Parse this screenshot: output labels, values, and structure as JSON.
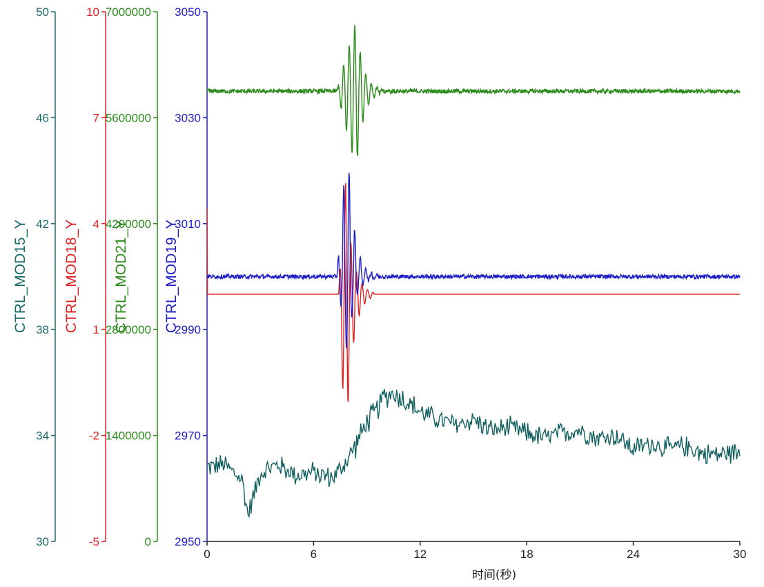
{
  "chart_data": {
    "type": "line",
    "xlabel": "时间(秒)",
    "xlim": [
      0,
      30
    ],
    "x_ticks": [
      "0",
      "6",
      "12",
      "18",
      "24",
      "30"
    ],
    "x_tick_values": [
      0,
      6,
      12,
      18,
      24,
      30
    ],
    "grid": false,
    "legend": "none",
    "y_axes": [
      {
        "name": "CTRL_MOD15_Y",
        "color": "#1a6b6b",
        "ylim": [
          30,
          50
        ],
        "tick_labels": [
          "30",
          "34",
          "38",
          "42",
          "46",
          "50"
        ]
      },
      {
        "name": "CTRL_MOD18_Y",
        "color": "#e02020",
        "ylim": [
          -5,
          10
        ],
        "tick_labels": [
          "-5",
          "-2",
          "1",
          "4",
          "7",
          "10"
        ]
      },
      {
        "name": "CTRL_MOD21_Y",
        "color": "#2a8a1a",
        "ylim": [
          0,
          7000000
        ],
        "tick_labels": [
          "0",
          "1400000",
          "2800000",
          "4200000",
          "5600000",
          "7000000"
        ]
      },
      {
        "name": "CTRL_MOD19_Y",
        "color": "#2020c8",
        "ylim": [
          2950,
          3050
        ],
        "tick_labels": [
          "2950",
          "2970",
          "2990",
          "3010",
          "3030",
          "3050"
        ]
      }
    ],
    "series": [
      {
        "name": "CTRL_MOD15_Y",
        "axis": 0,
        "color": "#105e5e",
        "x": [
          0,
          1,
          2,
          2.3,
          3,
          4,
          5,
          6,
          7,
          7.5,
          8,
          8.5,
          9,
          9.5,
          10,
          10.5,
          11,
          12,
          13,
          14,
          15,
          16,
          17,
          18,
          19,
          20,
          21,
          22,
          23,
          24,
          25,
          26,
          27,
          28,
          29,
          30
        ],
        "values": [
          32.8,
          32.9,
          32.3,
          31.0,
          32.6,
          32.9,
          32.5,
          32.6,
          32.4,
          32.7,
          33.2,
          33.8,
          34.5,
          34.9,
          35.5,
          35.6,
          35.4,
          34.9,
          34.6,
          34.4,
          34.6,
          34.2,
          34.3,
          34.1,
          33.9,
          34.1,
          34.2,
          33.9,
          34.0,
          33.5,
          33.7,
          33.5,
          33.6,
          33.3,
          33.3,
          33.4
        ]
      },
      {
        "name": "CTRL_MOD18_Y",
        "axis": 1,
        "color": "#e02020",
        "baseline": 2.0,
        "burst_start": 7.4,
        "burst_peak": 7.8,
        "burst_end": 9.4,
        "max": 5.2,
        "min": -2.5
      },
      {
        "name": "CTRL_MOD21_Y",
        "axis": 2,
        "color": "#2a8a1a",
        "baseline": 5950000,
        "burst_start": 7.3,
        "burst_peak": 8.4,
        "burst_end": 11.5,
        "max": 6900000,
        "min": 4900000
      },
      {
        "name": "CTRL_MOD19_Y",
        "axis": 3,
        "color": "#2020c8",
        "baseline": 3000.0,
        "burst_start": 7.3,
        "burst_peak": 7.9,
        "burst_end": 10.8,
        "max": 3026,
        "min": 2985
      }
    ]
  }
}
